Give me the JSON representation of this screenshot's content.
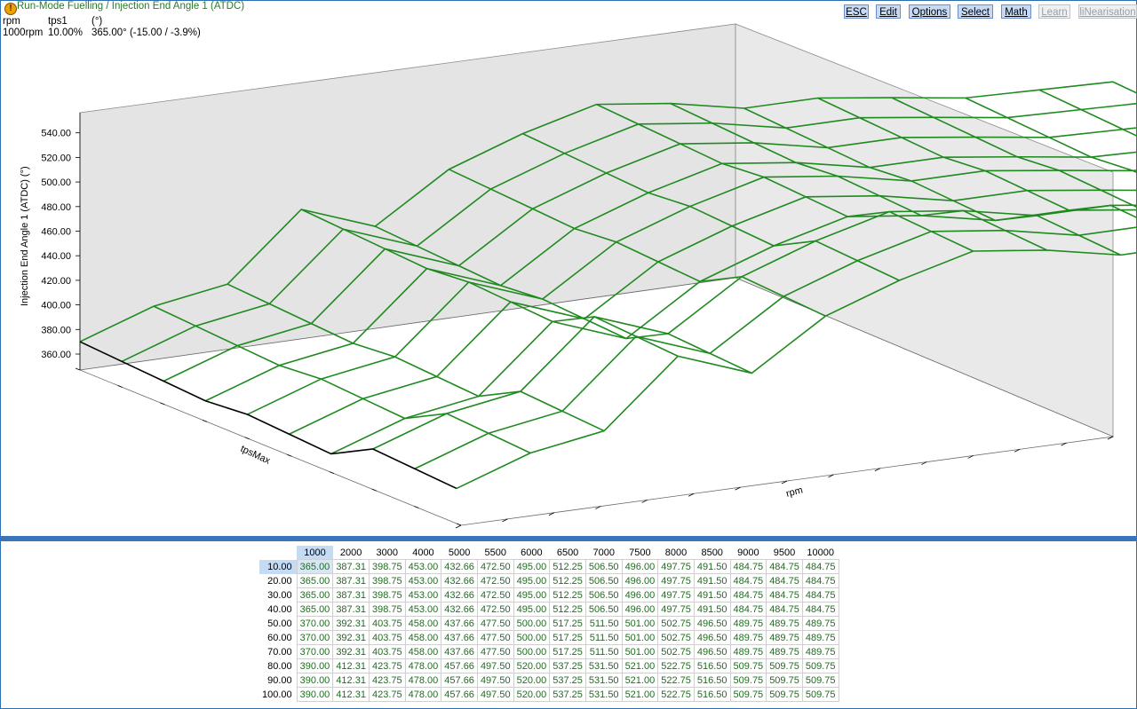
{
  "header": {
    "title": "Run-Mode Fuelling / Injection End Angle 1 (ATDC)",
    "col1_label": "rpm",
    "col2_label": "tps1",
    "col3_label": "(°)",
    "col1_value": "1000rpm",
    "col2_value": "10.00%",
    "col3_value": "365.00° (-15.00 / -3.9%)"
  },
  "toolbar": {
    "esc": "ESC",
    "edit": "Edit",
    "options": "Options",
    "select": "Select",
    "math": "Math",
    "learn": "Learn",
    "linearisation": "liNearisation"
  },
  "plot": {
    "zlabel": "Injection End Angle 1 (ATDC) (°)",
    "xlabel": "rpm",
    "ylabel": "tpsMax",
    "z_ticks": [
      "360.00",
      "380.00",
      "400.00",
      "420.00",
      "440.00",
      "460.00",
      "480.00",
      "500.00",
      "520.00",
      "540.00"
    ],
    "line_color": "#1f8a1f"
  },
  "table": {
    "rpm": [
      "1000",
      "2000",
      "3000",
      "4000",
      "5000",
      "5500",
      "6000",
      "6500",
      "7000",
      "7500",
      "8000",
      "8500",
      "9000",
      "9500",
      "10000"
    ],
    "tps": [
      "10.00",
      "20.00",
      "30.00",
      "40.00",
      "50.00",
      "60.00",
      "70.00",
      "80.00",
      "90.00",
      "100.00"
    ],
    "rows": [
      [
        "365.00",
        "387.31",
        "398.75",
        "453.00",
        "432.66",
        "472.50",
        "495.00",
        "512.25",
        "506.50",
        "496.00",
        "497.75",
        "491.50",
        "484.75",
        "484.75",
        "484.75"
      ],
      [
        "365.00",
        "387.31",
        "398.75",
        "453.00",
        "432.66",
        "472.50",
        "495.00",
        "512.25",
        "506.50",
        "496.00",
        "497.75",
        "491.50",
        "484.75",
        "484.75",
        "484.75"
      ],
      [
        "365.00",
        "387.31",
        "398.75",
        "453.00",
        "432.66",
        "472.50",
        "495.00",
        "512.25",
        "506.50",
        "496.00",
        "497.75",
        "491.50",
        "484.75",
        "484.75",
        "484.75"
      ],
      [
        "365.00",
        "387.31",
        "398.75",
        "453.00",
        "432.66",
        "472.50",
        "495.00",
        "512.25",
        "506.50",
        "496.00",
        "497.75",
        "491.50",
        "484.75",
        "484.75",
        "484.75"
      ],
      [
        "370.00",
        "392.31",
        "403.75",
        "458.00",
        "437.66",
        "477.50",
        "500.00",
        "517.25",
        "511.50",
        "501.00",
        "502.75",
        "496.50",
        "489.75",
        "489.75",
        "489.75"
      ],
      [
        "370.00",
        "392.31",
        "403.75",
        "458.00",
        "437.66",
        "477.50",
        "500.00",
        "517.25",
        "511.50",
        "501.00",
        "502.75",
        "496.50",
        "489.75",
        "489.75",
        "489.75"
      ],
      [
        "370.00",
        "392.31",
        "403.75",
        "458.00",
        "437.66",
        "477.50",
        "500.00",
        "517.25",
        "511.50",
        "501.00",
        "502.75",
        "496.50",
        "489.75",
        "489.75",
        "489.75"
      ],
      [
        "390.00",
        "412.31",
        "423.75",
        "478.00",
        "457.66",
        "497.50",
        "520.00",
        "537.25",
        "531.50",
        "521.00",
        "522.75",
        "516.50",
        "509.75",
        "509.75",
        "509.75"
      ],
      [
        "390.00",
        "412.31",
        "423.75",
        "478.00",
        "457.66",
        "497.50",
        "520.00",
        "537.25",
        "531.50",
        "521.00",
        "522.75",
        "516.50",
        "509.75",
        "509.75",
        "509.75"
      ],
      [
        "390.00",
        "412.31",
        "423.75",
        "478.00",
        "457.66",
        "497.50",
        "520.00",
        "537.25",
        "531.50",
        "521.00",
        "522.75",
        "516.50",
        "509.75",
        "509.75",
        "509.75"
      ]
    ]
  }
}
